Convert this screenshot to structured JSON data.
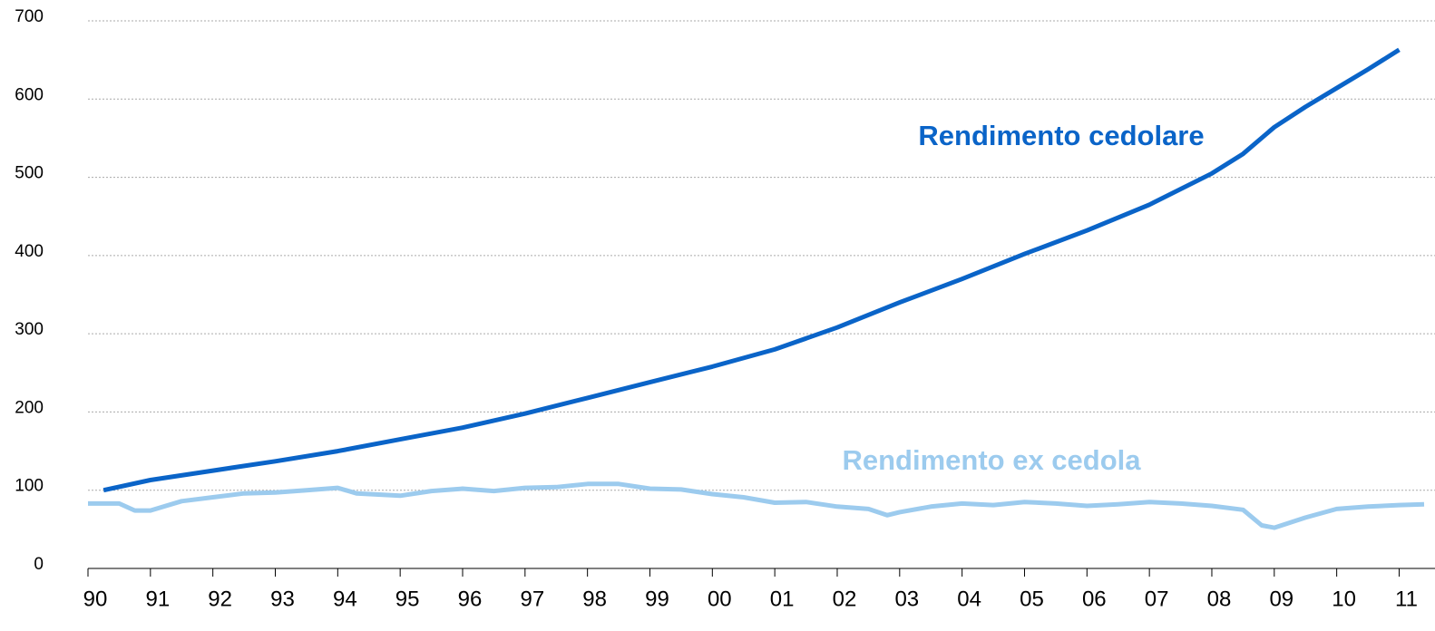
{
  "chart_data": {
    "type": "line",
    "xlim": [
      1990,
      2011.4
    ],
    "ylim": [
      0,
      700
    ],
    "yticks": [
      0,
      100,
      200,
      300,
      400,
      500,
      600,
      700
    ],
    "xticks": [
      {
        "value": 1990,
        "label": "90"
      },
      {
        "value": 1991,
        "label": "91"
      },
      {
        "value": 1992,
        "label": "92"
      },
      {
        "value": 1993,
        "label": "93"
      },
      {
        "value": 1994,
        "label": "94"
      },
      {
        "value": 1995,
        "label": "95"
      },
      {
        "value": 1996,
        "label": "96"
      },
      {
        "value": 1997,
        "label": "97"
      },
      {
        "value": 1998,
        "label": "98"
      },
      {
        "value": 1999,
        "label": "99"
      },
      {
        "value": 2000,
        "label": "00"
      },
      {
        "value": 2001,
        "label": "01"
      },
      {
        "value": 2002,
        "label": "02"
      },
      {
        "value": 2003,
        "label": "03"
      },
      {
        "value": 2004,
        "label": "04"
      },
      {
        "value": 2005,
        "label": "05"
      },
      {
        "value": 2006,
        "label": "06"
      },
      {
        "value": 2007,
        "label": "07"
      },
      {
        "value": 2008,
        "label": "08"
      },
      {
        "value": 2009,
        "label": "09"
      },
      {
        "value": 2010,
        "label": "10"
      },
      {
        "value": 2011,
        "label": "11"
      }
    ],
    "grid": true,
    "series": [
      {
        "name": "Rendimento cedolare",
        "color": "#0a64c8",
        "x": [
          1990.25,
          1991,
          1992,
          1993,
          1994,
          1995,
          1996,
          1997,
          1998,
          1999,
          2000,
          2001,
          2002,
          2003,
          2004,
          2005,
          2006,
          2007,
          2008,
          2008.5,
          2009,
          2009.5,
          2010,
          2010.5,
          2011
        ],
        "values": [
          100,
          113,
          125,
          137,
          150,
          165,
          180,
          198,
          218,
          238,
          258,
          280,
          308,
          340,
          370,
          402,
          432,
          465,
          505,
          530,
          564,
          590,
          614,
          638,
          663
        ]
      },
      {
        "name": "Rendimento ex cedola",
        "color": "#9ccbee",
        "x": [
          1990,
          1990.5,
          1990.75,
          1991,
          1991.5,
          1992,
          1992.5,
          1993,
          1993.5,
          1994,
          1994.3,
          1995,
          1995.5,
          1996,
          1996.5,
          1997,
          1997.5,
          1998,
          1998.5,
          1999,
          1999.5,
          2000,
          2000.5,
          2001,
          2001.5,
          2002,
          2002.5,
          2002.8,
          2003,
          2003.5,
          2004,
          2004.5,
          2005,
          2005.5,
          2006,
          2006.5,
          2007,
          2007.5,
          2008,
          2008.5,
          2008.8,
          2009,
          2009.5,
          2010,
          2010.5,
          2011,
          2011.4
        ],
        "values": [
          83,
          83,
          74,
          74,
          86,
          91,
          96,
          97,
          100,
          103,
          96,
          93,
          99,
          102,
          99,
          103,
          104,
          108,
          108,
          102,
          101,
          95,
          91,
          84,
          85,
          79,
          76,
          68,
          72,
          79,
          83,
          81,
          85,
          83,
          80,
          82,
          85,
          83,
          80,
          75,
          55,
          52,
          65,
          76,
          79,
          81,
          82
        ]
      }
    ]
  }
}
